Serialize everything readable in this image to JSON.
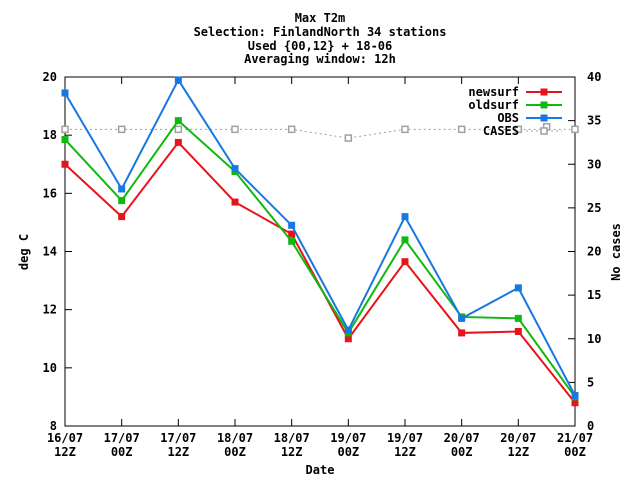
{
  "chart_data": {
    "type": "line",
    "title_lines": [
      "Max T2m",
      "Selection: FinlandNorth     34 stations",
      "Used {00,12} + 18-06",
      "Averaging window: 12h"
    ],
    "xlabel": "Date",
    "ylabel": "deg C",
    "y2label": "No cases",
    "categories": [
      [
        "16/07",
        "12Z"
      ],
      [
        "17/07",
        "00Z"
      ],
      [
        "17/07",
        "12Z"
      ],
      [
        "18/07",
        "00Z"
      ],
      [
        "18/07",
        "12Z"
      ],
      [
        "19/07",
        "00Z"
      ],
      [
        "19/07",
        "12Z"
      ],
      [
        "20/07",
        "00Z"
      ],
      [
        "20/07",
        "12Z"
      ],
      [
        "21/07",
        "00Z"
      ]
    ],
    "ylim": [
      8,
      20
    ],
    "yticks": [
      8,
      10,
      12,
      14,
      16,
      18,
      20
    ],
    "y2lim": [
      0,
      40
    ],
    "y2ticks": [
      0,
      5,
      10,
      15,
      20,
      25,
      30,
      35,
      40
    ],
    "grid": false,
    "legend_position": "top-right",
    "series": [
      {
        "name": "newsurf",
        "color": "#e8141c",
        "axis": "left",
        "style": "solid",
        "marker": "filled-square",
        "values": [
          17.0,
          15.2,
          17.75,
          15.7,
          14.6,
          11.0,
          13.65,
          11.2,
          11.25,
          8.8
        ]
      },
      {
        "name": "oldsurf",
        "color": "#10b810",
        "axis": "left",
        "style": "solid",
        "marker": "filled-square",
        "values": [
          17.85,
          15.75,
          18.5,
          16.75,
          14.35,
          11.2,
          14.4,
          11.75,
          11.7,
          9.0
        ]
      },
      {
        "name": "OBS",
        "color": "#1878e0",
        "axis": "left",
        "style": "solid",
        "marker": "filled-square",
        "values": [
          19.45,
          16.15,
          19.9,
          16.85,
          14.9,
          11.3,
          15.2,
          11.7,
          12.75,
          9.05
        ]
      },
      {
        "name": "CASES",
        "color": "#a0a0a0",
        "axis": "right",
        "style": "dotted",
        "marker": "open-square",
        "values": [
          34,
          34,
          34,
          34,
          34,
          33,
          34,
          34,
          34,
          34
        ],
        "extra_point": {
          "x_index": 8.5,
          "value": 34.3
        }
      }
    ]
  }
}
